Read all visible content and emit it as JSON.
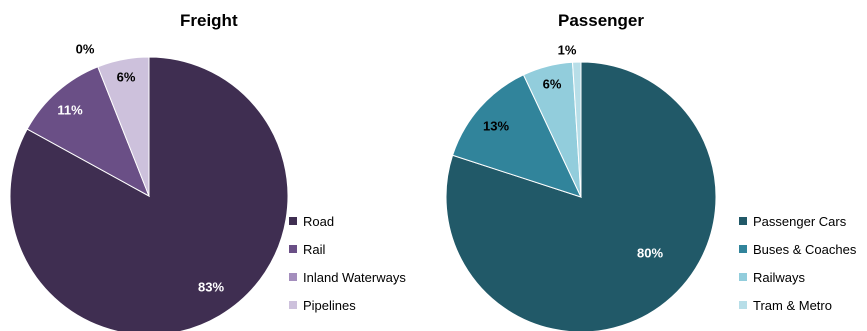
{
  "chart_data": [
    {
      "type": "pie",
      "title": "Freight",
      "categories": [
        "Road",
        "Rail",
        "Inland Waterways",
        "Pipelines"
      ],
      "values": [
        83,
        11,
        0,
        6
      ],
      "labels": [
        "83%",
        "11%",
        "0%",
        "6%"
      ],
      "colors": [
        "#3f2e51",
        "#6a4f86",
        "#a48ebd",
        "#cdc1dc"
      ],
      "label_colors": [
        "#ffffff",
        "#ffffff",
        "#000000",
        "#000000"
      ],
      "legend_position": "right"
    },
    {
      "type": "pie",
      "title": "Passenger",
      "categories": [
        "Passenger Cars",
        "Buses & Coaches",
        "Railways",
        "Tram & Metro"
      ],
      "values": [
        80,
        13,
        6,
        1
      ],
      "labels": [
        "80%",
        "13%",
        "6%",
        "1%"
      ],
      "colors": [
        "#215968",
        "#31849b",
        "#92cddc",
        "#b7dee8"
      ],
      "label_colors": [
        "#ffffff",
        "#000000",
        "#000000",
        "#000000"
      ],
      "legend_position": "right"
    }
  ]
}
